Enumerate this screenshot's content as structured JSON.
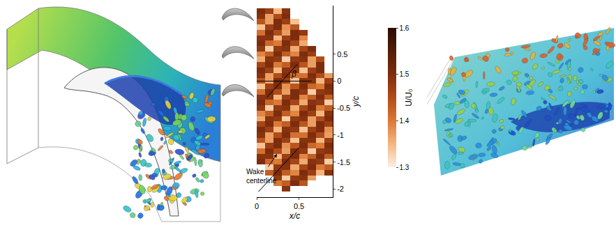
{
  "chart_data": {
    "type": "heatmap",
    "x_label": "x/c",
    "y_label": "y/c",
    "wake_label": "Wake centerline",
    "angle_label": "β",
    "xlim": [
      0,
      0.9
    ],
    "xticks": [
      0,
      0.5
    ],
    "ylim": [
      -2.15,
      1.4
    ],
    "yticks": [
      0.5,
      0,
      -0.5,
      -1,
      -1.5,
      -2
    ],
    "x": [
      0.05,
      0.15,
      0.25,
      0.35,
      0.45,
      0.55,
      0.65,
      0.75,
      0.85
    ],
    "y": [
      -2.0,
      -1.9,
      -1.8,
      -1.7,
      -1.6,
      -1.5,
      -1.4,
      -1.3,
      -1.2,
      -1.1,
      -1.0,
      -0.9,
      -0.8,
      -0.7,
      -0.6,
      -0.5,
      -0.4,
      -0.3,
      -0.2,
      -0.1,
      0,
      0.1,
      0.2,
      0.3,
      0.4,
      0.5,
      0.6,
      0.7,
      0.8,
      0.9,
      1.0,
      1.1,
      1.2,
      1.3
    ],
    "z": [
      [
        null,
        null,
        null,
        1.49,
        null,
        null,
        null,
        null,
        null
      ],
      [
        null,
        null,
        1.4,
        1.43,
        1.5,
        1.44,
        null,
        null,
        null
      ],
      [
        null,
        null,
        1.48,
        1.33,
        1.48,
        1.49,
        1.37,
        null,
        null
      ],
      [
        null,
        1.43,
        1.5,
        1.43,
        1.39,
        1.5,
        1.47,
        1.35,
        1.49
      ],
      [
        null,
        1.33,
        1.48,
        1.49,
        1.36,
        1.46,
        1.5,
        1.4,
        1.43
      ],
      [
        1.5,
        1.42,
        1.4,
        1.5,
        1.46,
        1.36,
        1.49,
        1.48,
        1.33
      ],
      [
        1.49,
        1.49,
        1.35,
        1.47,
        1.5,
        1.39,
        1.43,
        1.5,
        1.43
      ],
      [
        1.41,
        1.5,
        1.45,
        1.37,
        1.5,
        1.48,
        1.33,
        1.48,
        1.49
      ],
      [
        1.34,
        1.47,
        1.5,
        1.38,
        1.44,
        1.5,
        1.42,
        1.4,
        1.5
      ],
      [
        1.44,
        1.37,
        1.5,
        1.47,
        1.34,
        1.49,
        1.49,
        1.35,
        1.47
      ],
      [
        1.49,
        1.37,
        1.45,
        1.5,
        1.41,
        1.41,
        1.5,
        1.45,
        1.37
      ],
      [
        1.5,
        1.47,
        1.35,
        1.49,
        1.48,
        1.34,
        1.47,
        1.5,
        1.38
      ],
      [
        1.46,
        1.5,
        1.4,
        1.43,
        1.5,
        1.44,
        1.37,
        1.5,
        1.47
      ],
      [
        1.36,
        1.49,
        1.48,
        1.33,
        1.48,
        1.49,
        1.37,
        1.45,
        1.5
      ],
      [
        1.39,
        1.43,
        1.5,
        1.43,
        1.39,
        1.5,
        1.47,
        1.35,
        1.49
      ],
      [
        1.48,
        1.33,
        1.48,
        1.49,
        1.36,
        1.46,
        1.5,
        1.4,
        1.43
      ],
      [
        1.5,
        1.42,
        1.4,
        1.5,
        1.46,
        1.36,
        1.49,
        1.48,
        1.33
      ],
      [
        1.49,
        1.49,
        1.35,
        1.47,
        1.5,
        1.39,
        1.43,
        1.5,
        1.43
      ],
      [
        1.41,
        1.5,
        1.45,
        1.37,
        1.5,
        1.48,
        1.33,
        1.48,
        1.49
      ],
      [
        1.34,
        1.47,
        1.5,
        1.38,
        1.44,
        1.5,
        1.42,
        1.4,
        1.5
      ],
      [
        1.44,
        1.37,
        1.5,
        1.47,
        1.34,
        1.49,
        1.49,
        1.35,
        1.47
      ],
      [
        1.49,
        1.37,
        1.45,
        1.5,
        1.41,
        1.41,
        1.5,
        1.45,
        1.37
      ],
      [
        1.5,
        1.47,
        1.35,
        1.49,
        1.48,
        1.34,
        1.47,
        1.5,
        null
      ],
      [
        1.46,
        1.5,
        1.4,
        1.43,
        1.5,
        1.44,
        1.37,
        1.5,
        null
      ],
      [
        1.36,
        1.49,
        1.48,
        1.33,
        1.48,
        1.49,
        1.37,
        1.45,
        null
      ],
      [
        1.39,
        1.43,
        1.5,
        1.43,
        1.39,
        1.5,
        1.47,
        null,
        null
      ],
      [
        1.48,
        1.33,
        1.48,
        1.49,
        1.36,
        1.46,
        1.5,
        null,
        null
      ],
      [
        1.5,
        1.42,
        1.4,
        1.5,
        1.46,
        1.36,
        null,
        null,
        null
      ],
      [
        1.49,
        1.49,
        1.35,
        1.47,
        1.5,
        1.39,
        null,
        null,
        null
      ],
      [
        1.41,
        1.5,
        1.45,
        1.37,
        1.5,
        1.48,
        null,
        null,
        null
      ],
      [
        1.34,
        1.47,
        1.5,
        1.38,
        1.44,
        null,
        null,
        null,
        null
      ],
      [
        1.44,
        1.37,
        1.5,
        1.47,
        1.34,
        null,
        null,
        null,
        null
      ],
      [
        1.49,
        1.37,
        1.45,
        1.5,
        null,
        null,
        null,
        null,
        null
      ],
      [
        1.5,
        1.47,
        1.35,
        1.49,
        null,
        null,
        null,
        null,
        null
      ]
    ],
    "colorbar": {
      "title": "U/U₀",
      "range": [
        1.3,
        1.6
      ],
      "ticks": [
        1.3,
        1.4,
        1.5,
        1.6
      ]
    },
    "grid": false
  }
}
